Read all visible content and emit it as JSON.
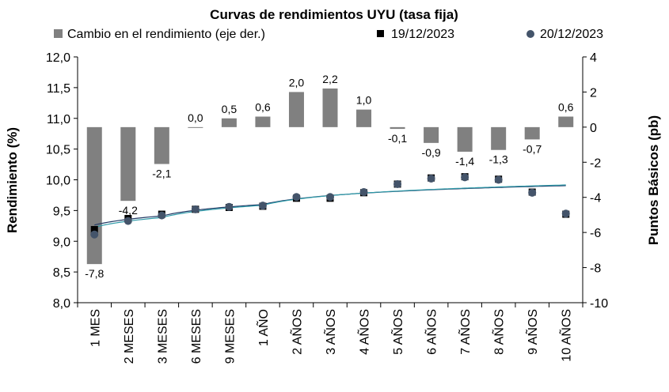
{
  "chart_data": {
    "type": "bar",
    "title": "Curvas de rendimientos UYU (tasa fija)",
    "categories": [
      "1 MES",
      "2 MESES",
      "3 MESES",
      "6 MESES",
      "9 MESES",
      "1 AÑO",
      "2 AÑOS",
      "3 AÑOS",
      "4 AÑOS",
      "5 AÑOS",
      "6 AÑOS",
      "7 AÑOS",
      "8 AÑOS",
      "9 AÑOS",
      "10 AÑOS"
    ],
    "ylabel": "Rendimiento (%)",
    "y2label": "Puntos Básicos (pb)",
    "ylim": [
      8.0,
      12.0
    ],
    "y2lim": [
      -10,
      4
    ],
    "yticks": [
      "8,0",
      "8,5",
      "9,0",
      "9,5",
      "10,0",
      "10,5",
      "11,0",
      "11,5",
      "12,0"
    ],
    "y2ticks": [
      "-10",
      "-8",
      "-6",
      "-4",
      "-2",
      "0",
      "2",
      "4"
    ],
    "series": [
      {
        "name": "Cambio en el rendimiento (eje der.)",
        "type": "bar",
        "axis": "right",
        "color": "#808080",
        "values": [
          -7.8,
          -4.2,
          -2.1,
          0.0,
          0.5,
          0.6,
          2.0,
          2.2,
          1.0,
          -0.1,
          -0.9,
          -1.4,
          -1.3,
          -0.7,
          0.6
        ],
        "labels": [
          "-7,8",
          "-4,2",
          "-2,1",
          "0,0",
          "0,5",
          "0,6",
          "2,0",
          "2,2",
          "1,0",
          "-0,1",
          "-0,9",
          "-1,4",
          "-1,3",
          "-0,7",
          "0,6"
        ]
      },
      {
        "name": "19/12/2023",
        "type": "scatter",
        "axis": "left",
        "marker": "square",
        "color": "#000000",
        "values": [
          9.19,
          9.37,
          9.44,
          9.52,
          9.55,
          9.57,
          9.7,
          9.7,
          9.79,
          9.93,
          10.03,
          10.05,
          10.01,
          9.8,
          9.44
        ]
      },
      {
        "name": "20/12/2023",
        "type": "scatter",
        "axis": "left",
        "marker": "circle",
        "color": "#44546A",
        "values": [
          9.11,
          9.33,
          9.42,
          9.52,
          9.56,
          9.58,
          9.72,
          9.72,
          9.8,
          9.93,
          10.02,
          10.04,
          10.0,
          9.79,
          9.45
        ]
      }
    ],
    "legend_position": "top",
    "grid": false
  }
}
